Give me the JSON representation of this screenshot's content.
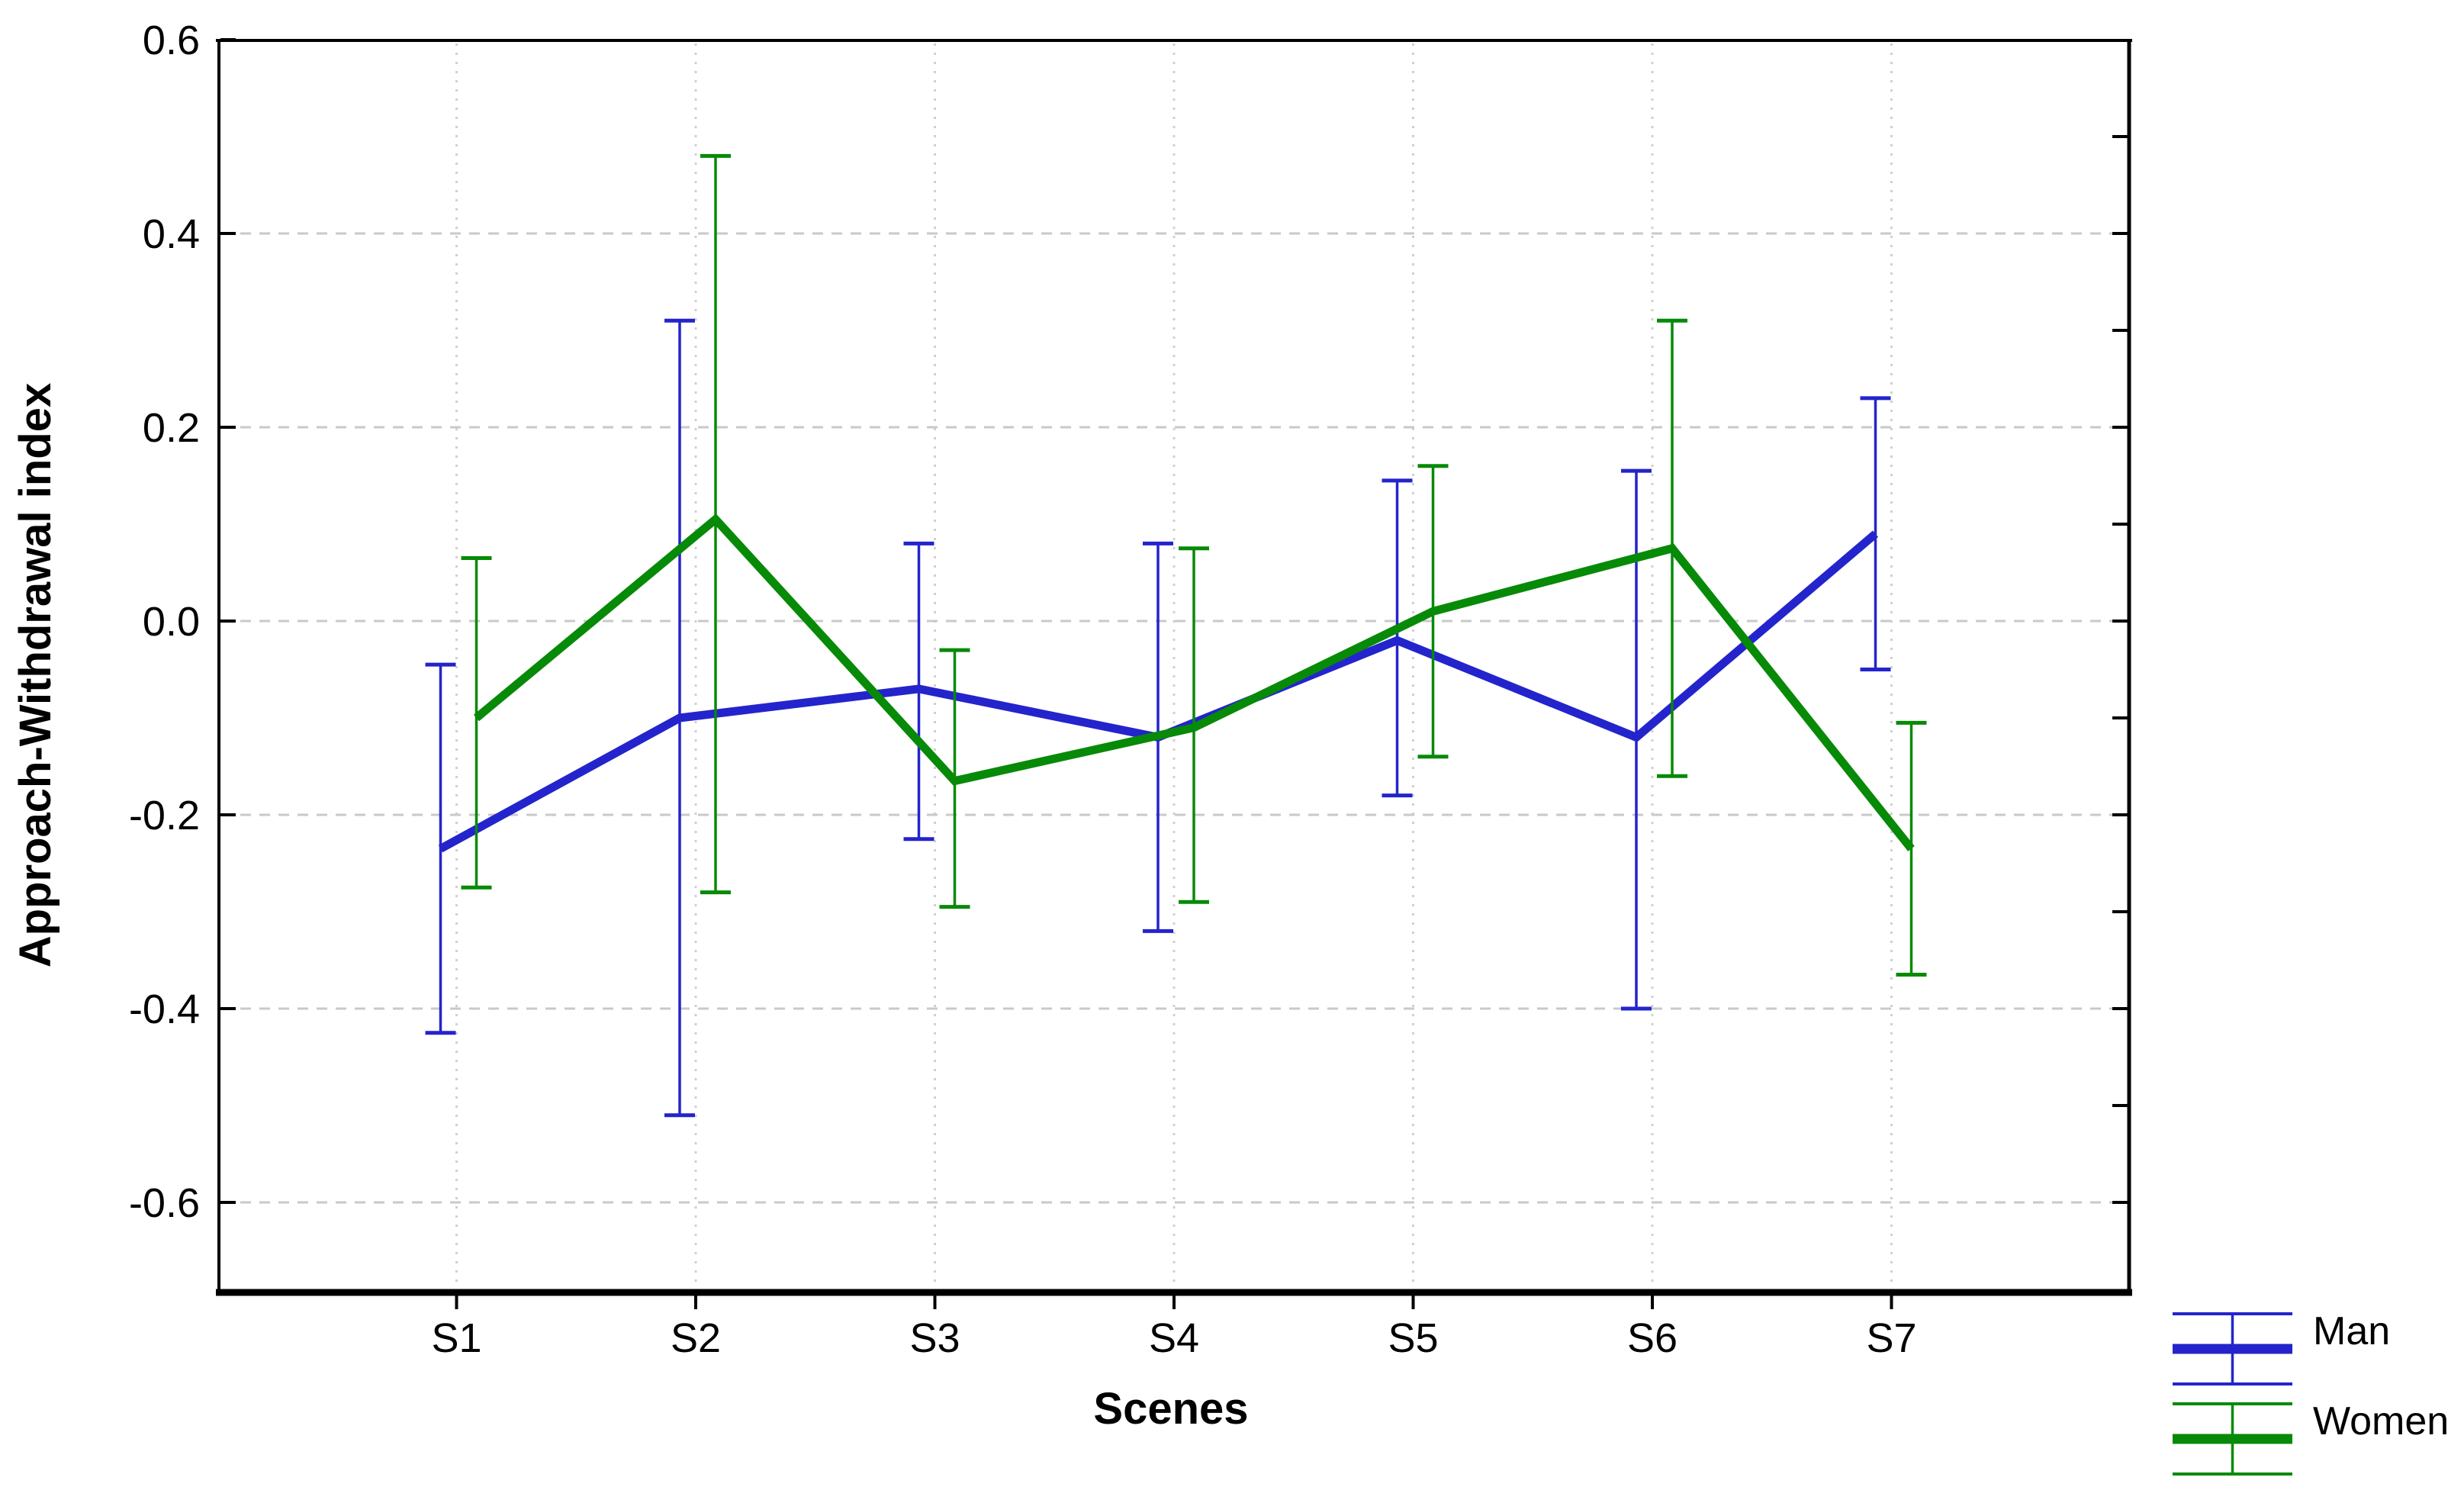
{
  "figure": {
    "background": "#ffffff",
    "frame_color": "#000000",
    "text_color": "#000000"
  },
  "chart_data": {
    "type": "line",
    "title": "",
    "xlabel": "Scenes",
    "ylabel": "Approach-Withdrawal index",
    "categories": [
      "S1",
      "S2",
      "S3",
      "S4",
      "S5",
      "S6",
      "S7"
    ],
    "ylim": [
      -0.7,
      0.6
    ],
    "y_axis": {
      "tick_values": [
        0.6,
        0.4,
        0.2,
        0.0,
        -0.2,
        -0.4,
        -0.6
      ],
      "tick_labels": [
        "0.6",
        "0.4",
        "0.2",
        "0.0",
        "-0.2",
        "-0.4",
        "-0.6"
      ],
      "right_minor_tick_step": 0.1,
      "right_minor_tick_range": [
        -0.6,
        0.5
      ]
    },
    "grid": {
      "h_values": [
        0.4,
        0.2,
        0.0,
        -0.2,
        -0.4,
        -0.6
      ],
      "h_style": "dashed",
      "h_color": "#c9c9c9",
      "v_style": "dotted",
      "v_color": "#d0d0d0",
      "v_at_categories": true
    },
    "legend_position": "bottom-right-outside",
    "series": [
      {
        "name": "Man",
        "color": "#2424cc",
        "values": [
          -0.235,
          -0.1,
          -0.07,
          -0.12,
          -0.02,
          -0.12,
          0.09
        ],
        "err_high": [
          -0.045,
          0.31,
          0.08,
          0.08,
          0.145,
          0.155,
          0.23
        ],
        "err_low": [
          -0.425,
          -0.51,
          -0.225,
          -0.32,
          -0.18,
          -0.4,
          -0.05
        ]
      },
      {
        "name": "Women",
        "color": "#078a07",
        "values": [
          -0.1,
          0.105,
          -0.165,
          -0.11,
          0.01,
          0.075,
          -0.235
        ],
        "err_high": [
          0.065,
          0.48,
          -0.03,
          0.075,
          0.16,
          0.31,
          -0.105
        ],
        "err_low": [
          -0.275,
          -0.28,
          -0.295,
          -0.29,
          -0.14,
          -0.16,
          -0.365
        ]
      }
    ]
  }
}
